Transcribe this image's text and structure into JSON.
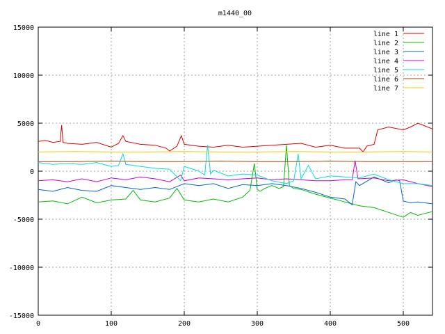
{
  "chart_data": {
    "type": "line",
    "title": "m1440_00",
    "xlabel": "",
    "ylabel": "",
    "xlim": [
      0,
      540
    ],
    "ylim": [
      -15000,
      15000
    ],
    "xticks": [
      0,
      100,
      200,
      300,
      400,
      500
    ],
    "xtick_labels": [
      "0",
      "100",
      "200",
      "300",
      "400",
      "500"
    ],
    "yticks": [
      -15000,
      -10000,
      -5000,
      0,
      5000,
      10000,
      15000
    ],
    "ytick_labels": [
      "-15000",
      "-10000",
      "-5000",
      "0",
      "5000",
      "10000",
      "15000"
    ],
    "grid": true,
    "legend_position": "top-right",
    "series": [
      {
        "name": "line 1",
        "color": "#dd0000",
        "x": [
          0,
          10,
          20,
          30,
          32,
          34,
          40,
          60,
          80,
          100,
          110,
          116,
          120,
          140,
          160,
          175,
          180,
          190,
          196,
          200,
          220,
          240,
          260,
          280,
          300,
          320,
          340,
          360,
          380,
          400,
          420,
          440,
          445,
          450,
          460,
          465,
          480,
          500,
          510,
          520,
          530,
          540
        ],
        "y": [
          3100,
          3200,
          3000,
          3100,
          4800,
          3000,
          2900,
          2800,
          3000,
          2500,
          2900,
          3700,
          3100,
          2800,
          2700,
          2400,
          2100,
          2600,
          3700,
          2800,
          2600,
          2500,
          2700,
          2500,
          2600,
          2700,
          2800,
          2900,
          2500,
          2700,
          2400,
          2400,
          2000,
          2600,
          2800,
          4300,
          4600,
          4300,
          4600,
          5000,
          4700,
          4400
        ]
      },
      {
        "name": "line 2",
        "color": "#00bb00",
        "x": [
          0,
          20,
          40,
          60,
          80,
          100,
          120,
          130,
          140,
          160,
          180,
          190,
          200,
          220,
          240,
          260,
          280,
          290,
          296,
          300,
          304,
          310,
          320,
          330,
          336,
          340,
          344,
          350,
          360,
          380,
          400,
          420,
          440,
          460,
          480,
          500,
          510,
          520,
          530,
          540
        ],
        "y": [
          -3200,
          -3100,
          -3400,
          -2700,
          -3300,
          -3000,
          -2900,
          -2000,
          -3000,
          -3200,
          -2800,
          -1800,
          -3000,
          -3200,
          -2900,
          -3200,
          -2700,
          -2000,
          800,
          -1900,
          -2100,
          -1800,
          -1500,
          -1800,
          -1600,
          2700,
          -1500,
          -1800,
          -1900,
          -2400,
          -2800,
          -3200,
          -3600,
          -3800,
          -4300,
          -4800,
          -4300,
          -4600,
          -4400,
          -4200
        ]
      },
      {
        "name": "line 3",
        "color": "#0066cc",
        "x": [
          0,
          20,
          40,
          60,
          80,
          100,
          120,
          140,
          160,
          180,
          200,
          220,
          240,
          260,
          280,
          300,
          320,
          340,
          360,
          380,
          400,
          420,
          430,
          435,
          440,
          460,
          480,
          490,
          495,
          500,
          510,
          520,
          540
        ],
        "y": [
          -1900,
          -2100,
          -1700,
          -2000,
          -2100,
          -1500,
          -1700,
          -1900,
          -1700,
          -1900,
          -1300,
          -1500,
          -1300,
          -1800,
          -1400,
          -1500,
          -1300,
          -1500,
          -1800,
          -2200,
          -2700,
          -2900,
          -3500,
          -1100,
          -1500,
          -600,
          -1200,
          -900,
          -1000,
          -3100,
          -3300,
          -3200,
          -3400
        ]
      },
      {
        "name": "line 4",
        "color": "#cc00cc",
        "x": [
          0,
          20,
          40,
          60,
          80,
          100,
          120,
          140,
          160,
          180,
          195,
          200,
          220,
          240,
          260,
          280,
          300,
          320,
          340,
          360,
          380,
          400,
          420,
          430,
          434,
          438,
          460,
          480,
          500,
          520,
          540
        ],
        "y": [
          -1000,
          -900,
          -1100,
          -800,
          -1100,
          -700,
          -900,
          -600,
          -800,
          -1100,
          -400,
          -1000,
          -700,
          -800,
          -900,
          -800,
          -700,
          -900,
          -800,
          -900,
          -1000,
          -1000,
          -900,
          -900,
          1100,
          -800,
          -700,
          -1000,
          -900,
          -1300,
          -1600
        ]
      },
      {
        "name": "line 5",
        "color": "#00dddd",
        "x": [
          0,
          20,
          40,
          60,
          80,
          100,
          110,
          116,
          120,
          140,
          160,
          180,
          195,
          200,
          220,
          228,
          232,
          236,
          240,
          260,
          280,
          300,
          320,
          340,
          350,
          356,
          360,
          370,
          380,
          400,
          420,
          440,
          460,
          480,
          500,
          520,
          540
        ],
        "y": [
          900,
          700,
          800,
          700,
          900,
          500,
          600,
          1800,
          700,
          500,
          300,
          200,
          -1000,
          500,
          0,
          -400,
          2700,
          -300,
          100,
          -500,
          -300,
          -400,
          -1000,
          -1300,
          -1000,
          1800,
          -800,
          600,
          -800,
          -500,
          -600,
          -700,
          -300,
          -900,
          -1300,
          -1300,
          -1500
        ]
      },
      {
        "name": "line 6",
        "color": "#aa4400",
        "x": [
          0,
          50,
          100,
          150,
          200,
          250,
          300,
          350,
          400,
          450,
          500,
          540
        ],
        "y": [
          1000,
          1000,
          1050,
          1000,
          1000,
          1050,
          1000,
          1000,
          1050,
          1000,
          1000,
          1000
        ]
      },
      {
        "name": "line 7",
        "color": "#eecc00",
        "x": [
          0,
          50,
          100,
          150,
          200,
          250,
          300,
          350,
          400,
          450,
          500,
          540
        ],
        "y": [
          2000,
          2050,
          2000,
          2000,
          2050,
          2000,
          2000,
          2050,
          2000,
          2000,
          2050,
          2000
        ]
      }
    ]
  }
}
